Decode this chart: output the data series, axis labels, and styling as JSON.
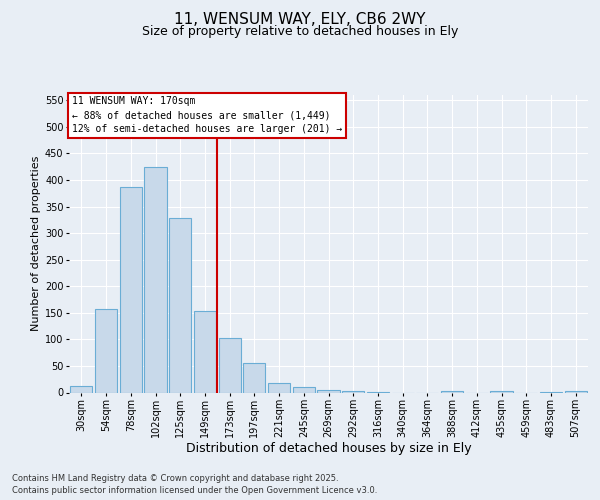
{
  "title_line1": "11, WENSUM WAY, ELY, CB6 2WY",
  "title_line2": "Size of property relative to detached houses in Ely",
  "xlabel": "Distribution of detached houses by size in Ely",
  "ylabel": "Number of detached properties",
  "categories": [
    "30sqm",
    "54sqm",
    "78sqm",
    "102sqm",
    "125sqm",
    "149sqm",
    "173sqm",
    "197sqm",
    "221sqm",
    "245sqm",
    "269sqm",
    "292sqm",
    "316sqm",
    "340sqm",
    "364sqm",
    "388sqm",
    "412sqm",
    "435sqm",
    "459sqm",
    "483sqm",
    "507sqm"
  ],
  "values": [
    13,
    157,
    387,
    425,
    328,
    153,
    103,
    55,
    18,
    10,
    5,
    3,
    1,
    0,
    0,
    3,
    0,
    2,
    0,
    1,
    2
  ],
  "bar_color": "#c8d9ea",
  "bar_edge_color": "#6aadd5",
  "background_color": "#e8eef5",
  "grid_color": "#ffffff",
  "annotation_text": "11 WENSUM WAY: 170sqm\n← 88% of detached houses are smaller (1,449)\n12% of semi-detached houses are larger (201) →",
  "annotation_box_color": "#ffffff",
  "annotation_box_edge": "#cc0000",
  "vline_color": "#cc0000",
  "vline_x": 6,
  "ylim": [
    0,
    560
  ],
  "yticks": [
    0,
    50,
    100,
    150,
    200,
    250,
    300,
    350,
    400,
    450,
    500,
    550
  ],
  "footnote": "Contains HM Land Registry data © Crown copyright and database right 2025.\nContains public sector information licensed under the Open Government Licence v3.0.",
  "title_fontsize": 11,
  "subtitle_fontsize": 9,
  "tick_fontsize": 7,
  "xlabel_fontsize": 9,
  "ylabel_fontsize": 8,
  "annot_fontsize": 7,
  "footnote_fontsize": 6
}
